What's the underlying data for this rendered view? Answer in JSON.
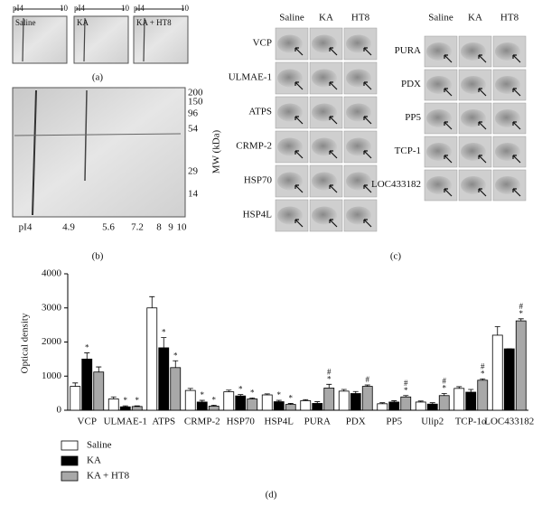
{
  "panel_a": {
    "label": "(a)",
    "pi_start": "pI4",
    "pi_end": "10",
    "gels": [
      "Saline",
      "KA",
      "KA + HT8"
    ]
  },
  "panel_b": {
    "label": "(b)",
    "mw_title": "MW (kDa)",
    "mw_ticks": [
      "200",
      "150",
      "96",
      "54",
      "29",
      "14"
    ],
    "pi_ticks": [
      "pI4",
      "4.9",
      "5.6",
      "7.2",
      "8",
      "9",
      "10"
    ]
  },
  "panel_c": {
    "label": "(c)",
    "left": {
      "columns": [
        "Saline",
        "KA",
        "HT8"
      ],
      "rows": [
        "VCP",
        "ULMAE-1",
        "ATPS",
        "CRMP-2",
        "HSP70",
        "HSP4L"
      ]
    },
    "right": {
      "columns": [
        "Saline",
        "KA",
        "HT8"
      ],
      "rows": [
        "PURA",
        "PDX",
        "PP5",
        "TCP-1",
        "LOC433182"
      ]
    }
  },
  "panel_d_label": "(d)",
  "chart_data": {
    "type": "bar",
    "y_label": "Optical density",
    "categories": [
      "VCP",
      "ULMAE-1",
      "ATPS",
      "CRMP-2",
      "HSP70",
      "HSP4L",
      "PURA",
      "PDX",
      "PP5",
      "Ulip2",
      "TCP-1α",
      "LOC433182"
    ],
    "series": [
      {
        "name": "Saline",
        "color": "#ffffff",
        "values": [
          700,
          330,
          3000,
          580,
          540,
          450,
          280,
          560,
          190,
          240,
          640,
          2200
        ],
        "errors": [
          100,
          60,
          330,
          60,
          50,
          30,
          30,
          50,
          30,
          30,
          50,
          250
        ],
        "sig": [
          null,
          null,
          null,
          null,
          null,
          null,
          null,
          null,
          null,
          null,
          null,
          null
        ]
      },
      {
        "name": "KA",
        "color": "#000000",
        "values": [
          1500,
          100,
          1830,
          240,
          420,
          250,
          200,
          490,
          240,
          180,
          530,
          1800
        ],
        "errors": [
          180,
          30,
          300,
          50,
          40,
          40,
          50,
          60,
          40,
          40,
          80,
          0
        ],
        "sig": [
          [
            "*"
          ],
          [
            "*"
          ],
          [
            "*"
          ],
          [
            "*"
          ],
          [
            "*"
          ],
          [
            "*"
          ],
          null,
          null,
          null,
          null,
          null,
          null
        ]
      },
      {
        "name": "KA + HT8",
        "color": "#a8a8a8",
        "values": [
          1120,
          110,
          1250,
          120,
          330,
          170,
          650,
          700,
          390,
          430,
          880,
          2620
        ],
        "errors": [
          150,
          20,
          200,
          30,
          30,
          30,
          110,
          40,
          40,
          60,
          40,
          60
        ],
        "sig": [
          null,
          [
            "*"
          ],
          [
            "*"
          ],
          [
            "*"
          ],
          [
            "*"
          ],
          [
            "*"
          ],
          [
            "#",
            "*"
          ],
          [
            "#"
          ],
          [
            "#",
            "*"
          ],
          [
            "#",
            "*"
          ],
          [
            "#",
            "*"
          ],
          [
            "#",
            "*"
          ]
        ]
      }
    ],
    "ylim": [
      0,
      4000
    ],
    "yticks": [
      0,
      1000,
      2000,
      3000,
      4000
    ]
  }
}
